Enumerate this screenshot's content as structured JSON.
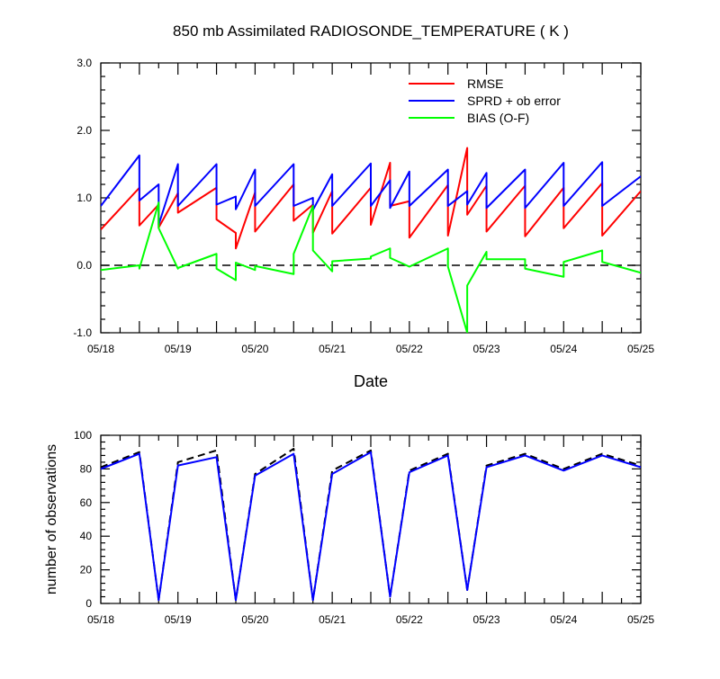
{
  "title": "850 mb Assimilated RADIOSONDE_TEMPERATURE ( K )",
  "chart_data": [
    {
      "type": "line",
      "title": "850 mb Assimilated RADIOSONDE_TEMPERATURE ( K )",
      "xlabel": "Date",
      "ylabel": "",
      "x_ticks": [
        "05/18",
        "05/19",
        "05/20",
        "05/21",
        "05/22",
        "05/23",
        "05/24",
        "05/25"
      ],
      "xlim": [
        0,
        7
      ],
      "ylim": [
        -1.0,
        3.0
      ],
      "y_ticks": [
        "-1.0",
        "0.0",
        "1.0",
        "2.0",
        "3.0"
      ],
      "reference_line": {
        "y": 0,
        "style": "dashed"
      },
      "legend_position": "top-right",
      "series": [
        {
          "name": "RMSE",
          "color": "#ff0000",
          "points": [
            [
              0,
              0.53
            ],
            [
              0.5,
              1.15
            ],
            [
              0.5,
              0.59
            ],
            [
              0.75,
              0.9
            ],
            [
              0.75,
              0.56
            ],
            [
              1,
              1.07
            ],
            [
              1,
              0.78
            ],
            [
              1.5,
              1.15
            ],
            [
              1.5,
              0.68
            ],
            [
              1.75,
              0.48
            ],
            [
              1.75,
              0.25
            ],
            [
              2,
              1.08
            ],
            [
              2,
              0.5
            ],
            [
              2.5,
              1.2
            ],
            [
              2.5,
              0.66
            ],
            [
              2.75,
              0.9
            ],
            [
              2.75,
              0.48
            ],
            [
              3,
              1.1
            ],
            [
              3,
              0.47
            ],
            [
              3.5,
              1.15
            ],
            [
              3.5,
              0.6
            ],
            [
              3.75,
              1.52
            ],
            [
              3.75,
              0.88
            ],
            [
              4,
              0.95
            ],
            [
              4,
              0.41
            ],
            [
              4.5,
              1.19
            ],
            [
              4.5,
              0.44
            ],
            [
              4.75,
              1.74
            ],
            [
              4.75,
              0.75
            ],
            [
              5,
              1.18
            ],
            [
              5,
              0.5
            ],
            [
              5.5,
              1.18
            ],
            [
              5.5,
              0.43
            ],
            [
              6,
              1.15
            ],
            [
              6,
              0.55
            ],
            [
              6.5,
              1.22
            ],
            [
              6.5,
              0.44
            ],
            [
              7,
              1.1
            ]
          ]
        },
        {
          "name": "SPRD + ob error",
          "color": "#0000ff",
          "points": [
            [
              0,
              0.88
            ],
            [
              0.5,
              1.63
            ],
            [
              0.5,
              0.96
            ],
            [
              0.75,
              1.2
            ],
            [
              0.75,
              0.6
            ],
            [
              1,
              1.5
            ],
            [
              1,
              0.88
            ],
            [
              1.5,
              1.5
            ],
            [
              1.5,
              0.9
            ],
            [
              1.75,
              1.02
            ],
            [
              1.75,
              0.83
            ],
            [
              2,
              1.42
            ],
            [
              2,
              0.88
            ],
            [
              2.5,
              1.5
            ],
            [
              2.5,
              0.88
            ],
            [
              2.75,
              1.0
            ],
            [
              2.75,
              0.82
            ],
            [
              3,
              1.35
            ],
            [
              3,
              0.88
            ],
            [
              3.5,
              1.51
            ],
            [
              3.5,
              0.88
            ],
            [
              3.75,
              1.26
            ],
            [
              3.75,
              0.85
            ],
            [
              4,
              1.39
            ],
            [
              4,
              0.88
            ],
            [
              4.5,
              1.42
            ],
            [
              4.5,
              0.88
            ],
            [
              4.75,
              1.1
            ],
            [
              4.75,
              0.9
            ],
            [
              5,
              1.37
            ],
            [
              5,
              0.85
            ],
            [
              5.5,
              1.42
            ],
            [
              5.5,
              0.85
            ],
            [
              6,
              1.52
            ],
            [
              6,
              0.88
            ],
            [
              6.5,
              1.53
            ],
            [
              6.5,
              0.88
            ],
            [
              7,
              1.32
            ]
          ]
        },
        {
          "name": "BIAS (O-F)",
          "color": "#00ff00",
          "points": [
            [
              0,
              -0.07
            ],
            [
              0.5,
              0.0
            ],
            [
              0.5,
              -0.05
            ],
            [
              0.75,
              0.93
            ],
            [
              0.75,
              0.55
            ],
            [
              1,
              -0.05
            ],
            [
              1,
              -0.04
            ],
            [
              1.5,
              0.17
            ],
            [
              1.5,
              -0.05
            ],
            [
              1.75,
              -0.22
            ],
            [
              1.75,
              0.04
            ],
            [
              2,
              -0.07
            ],
            [
              2,
              -0.01
            ],
            [
              2.5,
              -0.13
            ],
            [
              2.5,
              0.17
            ],
            [
              2.75,
              0.88
            ],
            [
              2.75,
              0.22
            ],
            [
              3,
              -0.09
            ],
            [
              3,
              0.06
            ],
            [
              3.5,
              0.1
            ],
            [
              3.5,
              0.13
            ],
            [
              3.75,
              0.25
            ],
            [
              3.75,
              0.11
            ],
            [
              4,
              -0.02
            ],
            [
              4,
              -0.02
            ],
            [
              4.5,
              0.25
            ],
            [
              4.5,
              -0.02
            ],
            [
              4.75,
              -1.0
            ],
            [
              4.75,
              -0.3
            ],
            [
              5,
              0.2
            ],
            [
              5,
              0.09
            ],
            [
              5.5,
              0.09
            ],
            [
              5.5,
              -0.05
            ],
            [
              6,
              -0.17
            ],
            [
              6,
              0.05
            ],
            [
              6.5,
              0.22
            ],
            [
              6.5,
              0.05
            ],
            [
              7,
              -0.11
            ]
          ]
        }
      ]
    },
    {
      "type": "line",
      "title": "",
      "xlabel": "",
      "ylabel": "number of observations",
      "x_ticks": [
        "05/18",
        "05/19",
        "05/20",
        "05/21",
        "05/22",
        "05/23",
        "05/24",
        "05/25"
      ],
      "xlim": [
        0,
        7
      ],
      "ylim": [
        0,
        100
      ],
      "y_ticks": [
        "0",
        "20",
        "40",
        "60",
        "80",
        "100"
      ],
      "series": [
        {
          "name": "",
          "color": "#000000",
          "style": "dashed",
          "points": [
            [
              0,
              81
            ],
            [
              0.5,
              90
            ],
            [
              0.75,
              2
            ],
            [
              1,
              84
            ],
            [
              1.5,
              91
            ],
            [
              1.75,
              2
            ],
            [
              2,
              77
            ],
            [
              2.5,
              92
            ],
            [
              2.75,
              2
            ],
            [
              3,
              79
            ],
            [
              3.5,
              91
            ],
            [
              3.75,
              4
            ],
            [
              4,
              79
            ],
            [
              4.5,
              89
            ],
            [
              4.75,
              8
            ],
            [
              5,
              82
            ],
            [
              5.5,
              89
            ],
            [
              6,
              80
            ],
            [
              6.5,
              89
            ],
            [
              7,
              82
            ]
          ]
        },
        {
          "name": "",
          "color": "#0000ff",
          "style": "solid",
          "points": [
            [
              0,
              80
            ],
            [
              0.5,
              89
            ],
            [
              0.75,
              2
            ],
            [
              1,
              82
            ],
            [
              1.5,
              87
            ],
            [
              1.75,
              2
            ],
            [
              2,
              76
            ],
            [
              2.5,
              89
            ],
            [
              2.75,
              2
            ],
            [
              3,
              77
            ],
            [
              3.5,
              90
            ],
            [
              3.75,
              4
            ],
            [
              4,
              78
            ],
            [
              4.5,
              88
            ],
            [
              4.75,
              8
            ],
            [
              5,
              81
            ],
            [
              5.5,
              88
            ],
            [
              6,
              79
            ],
            [
              6.5,
              88
            ],
            [
              7,
              81
            ]
          ]
        }
      ]
    }
  ]
}
